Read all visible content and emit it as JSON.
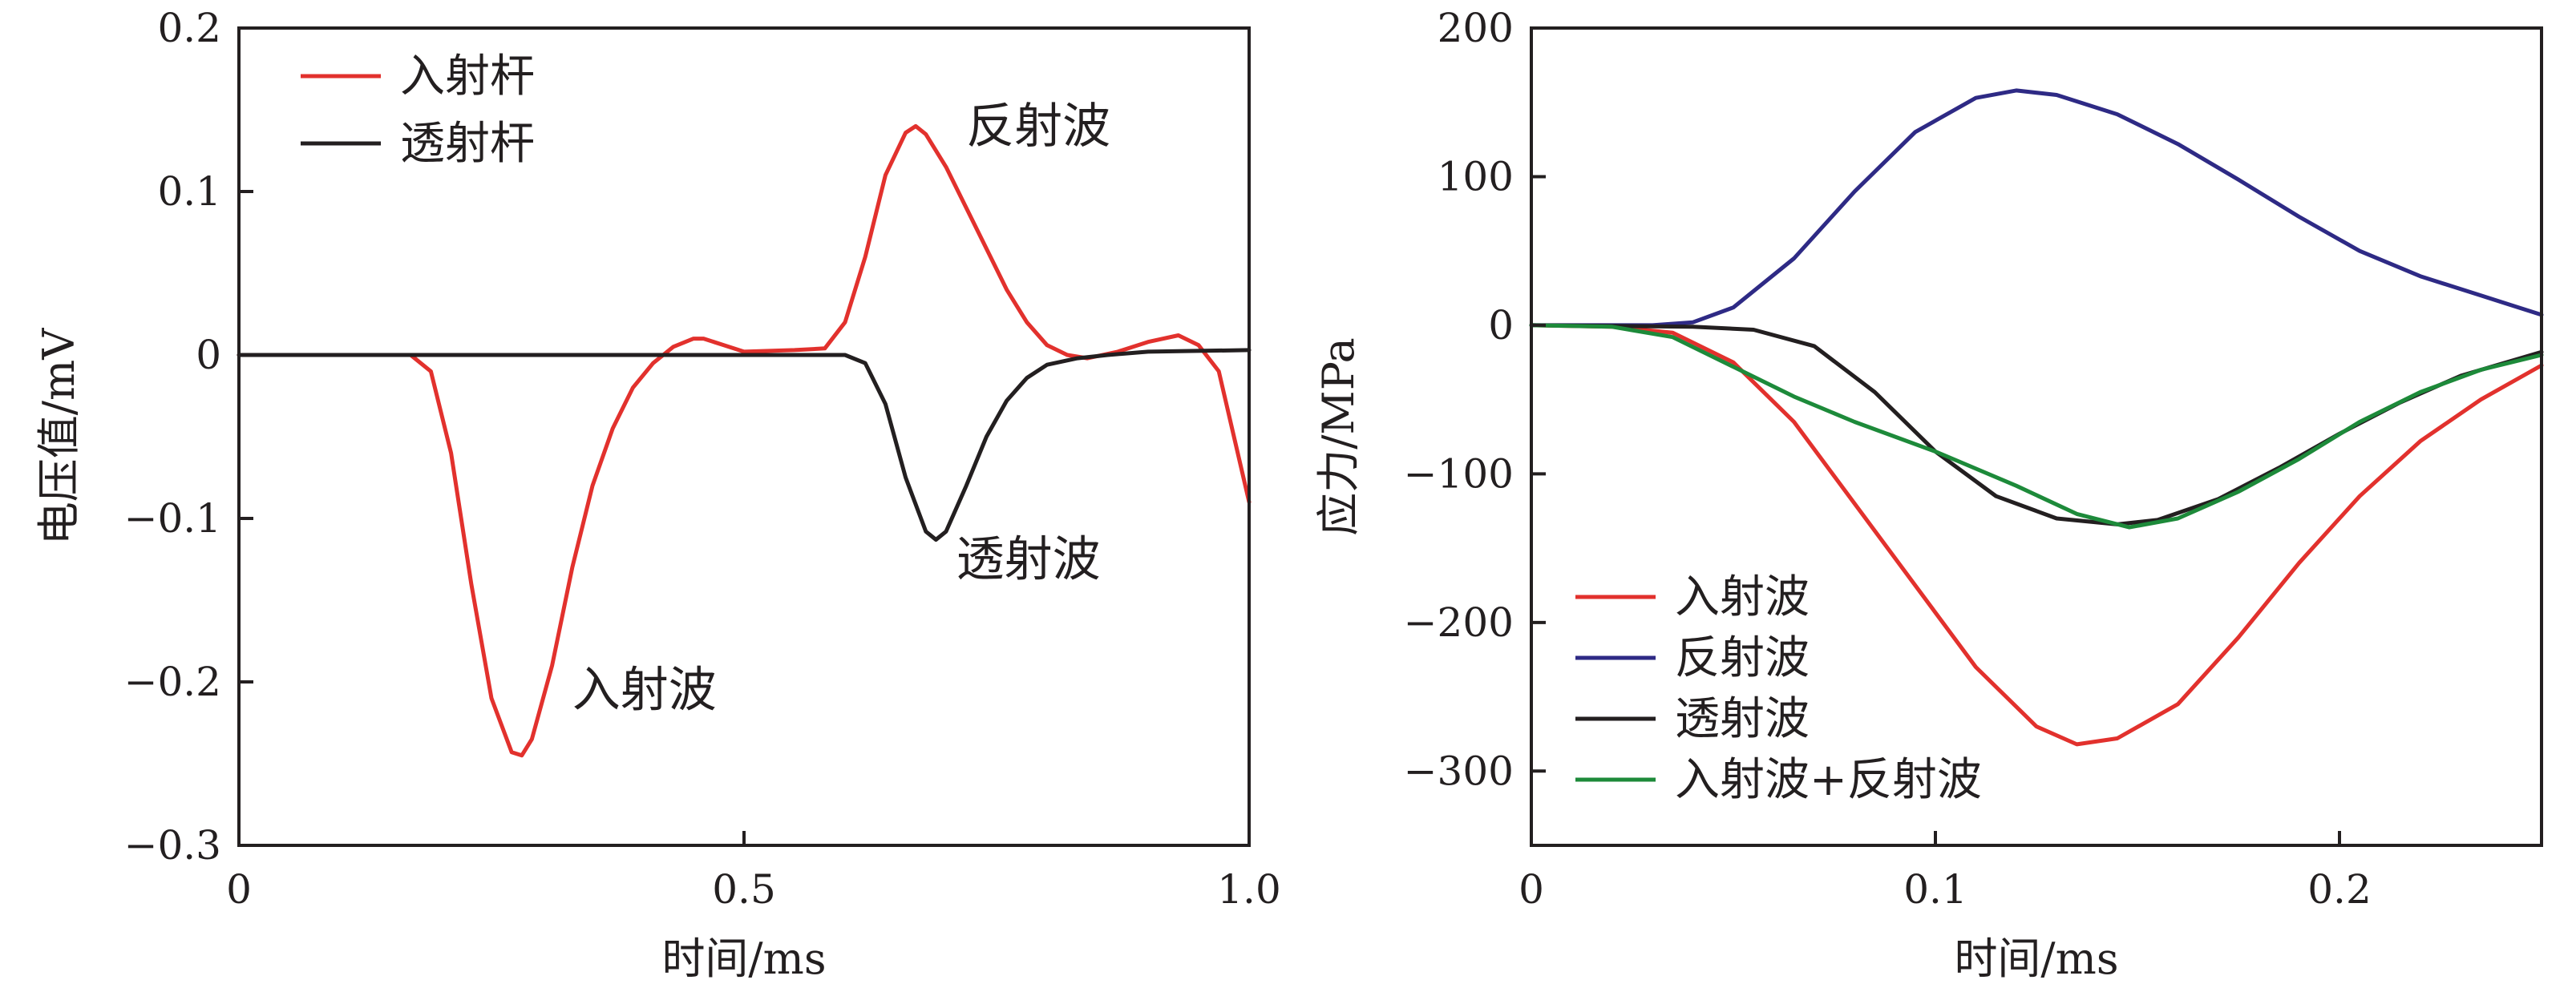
{
  "chart_data": [
    {
      "type": "line",
      "title": "",
      "xlabel": "时间/ms",
      "ylabel": "电压值/mV",
      "xlim": [
        0,
        1.0
      ],
      "ylim": [
        -0.3,
        0.2
      ],
      "xticks": [
        "0",
        "0.5",
        "1.0"
      ],
      "xtick_values": [
        0,
        0.5,
        1.0
      ],
      "yticks": [
        "0.2",
        "0.1",
        "0",
        "−0.1",
        "−0.2",
        "−0.3"
      ],
      "ytick_values": [
        0.2,
        0.1,
        0,
        -0.1,
        -0.2,
        -0.3
      ],
      "grid": false,
      "legend_position": "top-left",
      "series": [
        {
          "name": "入射杆",
          "color": "#e2312d",
          "points": [
            [
              0,
              0
            ],
            [
              0.17,
              0
            ],
            [
              0.19,
              -0.01
            ],
            [
              0.21,
              -0.06
            ],
            [
              0.23,
              -0.14
            ],
            [
              0.25,
              -0.21
            ],
            [
              0.27,
              -0.243
            ],
            [
              0.28,
              -0.245
            ],
            [
              0.29,
              -0.235
            ],
            [
              0.31,
              -0.19
            ],
            [
              0.33,
              -0.13
            ],
            [
              0.35,
              -0.08
            ],
            [
              0.37,
              -0.045
            ],
            [
              0.39,
              -0.02
            ],
            [
              0.41,
              -0.005
            ],
            [
              0.43,
              0.005
            ],
            [
              0.45,
              0.01
            ],
            [
              0.46,
              0.01
            ],
            [
              0.48,
              0.006
            ],
            [
              0.5,
              0.002
            ],
            [
              0.55,
              0.003
            ],
            [
              0.58,
              0.004
            ],
            [
              0.6,
              0.02
            ],
            [
              0.62,
              0.06
            ],
            [
              0.64,
              0.11
            ],
            [
              0.66,
              0.136
            ],
            [
              0.67,
              0.14
            ],
            [
              0.68,
              0.135
            ],
            [
              0.7,
              0.115
            ],
            [
              0.72,
              0.09
            ],
            [
              0.74,
              0.065
            ],
            [
              0.76,
              0.04
            ],
            [
              0.78,
              0.02
            ],
            [
              0.8,
              0.006
            ],
            [
              0.82,
              0.0
            ],
            [
              0.84,
              -0.002
            ],
            [
              0.87,
              0.002
            ],
            [
              0.9,
              0.008
            ],
            [
              0.93,
              0.012
            ],
            [
              0.95,
              0.006
            ],
            [
              0.97,
              -0.01
            ],
            [
              0.985,
              -0.05
            ],
            [
              1.0,
              -0.09
            ]
          ]
        },
        {
          "name": "透射杆",
          "color": "#231f20",
          "points": [
            [
              0,
              0
            ],
            [
              0.55,
              0
            ],
            [
              0.6,
              0
            ],
            [
              0.62,
              -0.005
            ],
            [
              0.64,
              -0.03
            ],
            [
              0.66,
              -0.075
            ],
            [
              0.68,
              -0.108
            ],
            [
              0.69,
              -0.113
            ],
            [
              0.7,
              -0.108
            ],
            [
              0.72,
              -0.08
            ],
            [
              0.74,
              -0.05
            ],
            [
              0.76,
              -0.028
            ],
            [
              0.78,
              -0.014
            ],
            [
              0.8,
              -0.006
            ],
            [
              0.83,
              -0.002
            ],
            [
              0.86,
              0.0
            ],
            [
              0.9,
              0.002
            ],
            [
              1.0,
              0.003
            ]
          ]
        }
      ],
      "annotations": [
        {
          "text": "反射波",
          "x": 0.72,
          "y": 0.13
        },
        {
          "text": "透射波",
          "x": 0.71,
          "y": -0.135
        },
        {
          "text": "入射波",
          "x": 0.33,
          "y": -0.215
        }
      ]
    },
    {
      "type": "line",
      "title": "",
      "xlabel": "时间/ms",
      "ylabel": "应力/MPa",
      "xlim": [
        0,
        0.25
      ],
      "ylim": [
        -350,
        200
      ],
      "xticks": [
        "0",
        "0.1",
        "0.2"
      ],
      "xtick_values": [
        0,
        0.1,
        0.2
      ],
      "yticks": [
        "200",
        "100",
        "0",
        "−100",
        "−200",
        "−300"
      ],
      "ytick_values": [
        200,
        100,
        0,
        -100,
        -200,
        -300
      ],
      "grid": false,
      "legend_position": "bottom-left",
      "series": [
        {
          "name": "入射波",
          "color": "#e2312d",
          "points": [
            [
              0,
              0
            ],
            [
              0.02,
              -1
            ],
            [
              0.035,
              -5
            ],
            [
              0.05,
              -25
            ],
            [
              0.065,
              -65
            ],
            [
              0.08,
              -120
            ],
            [
              0.095,
              -175
            ],
            [
              0.11,
              -230
            ],
            [
              0.125,
              -270
            ],
            [
              0.135,
              -282
            ],
            [
              0.145,
              -278
            ],
            [
              0.16,
              -255
            ],
            [
              0.175,
              -210
            ],
            [
              0.19,
              -160
            ],
            [
              0.205,
              -115
            ],
            [
              0.22,
              -78
            ],
            [
              0.235,
              -50
            ],
            [
              0.25,
              -27
            ]
          ]
        },
        {
          "name": "反射波",
          "color": "#2e2a85",
          "points": [
            [
              0,
              0
            ],
            [
              0.03,
              0
            ],
            [
              0.04,
              2
            ],
            [
              0.05,
              12
            ],
            [
              0.065,
              45
            ],
            [
              0.08,
              90
            ],
            [
              0.095,
              130
            ],
            [
              0.11,
              153
            ],
            [
              0.12,
              158
            ],
            [
              0.13,
              155
            ],
            [
              0.145,
              142
            ],
            [
              0.16,
              122
            ],
            [
              0.175,
              98
            ],
            [
              0.19,
              73
            ],
            [
              0.205,
              50
            ],
            [
              0.22,
              33
            ],
            [
              0.235,
              20
            ],
            [
              0.25,
              7
            ]
          ]
        },
        {
          "name": "透射波",
          "color": "#231f20",
          "points": [
            [
              0,
              0
            ],
            [
              0.04,
              -1
            ],
            [
              0.055,
              -3
            ],
            [
              0.07,
              -14
            ],
            [
              0.085,
              -45
            ],
            [
              0.1,
              -85
            ],
            [
              0.115,
              -115
            ],
            [
              0.13,
              -130
            ],
            [
              0.145,
              -134
            ],
            [
              0.155,
              -131
            ],
            [
              0.17,
              -117
            ],
            [
              0.185,
              -96
            ],
            [
              0.2,
              -73
            ],
            [
              0.215,
              -52
            ],
            [
              0.23,
              -34
            ],
            [
              0.25,
              -18
            ]
          ]
        },
        {
          "name": "入射波+反射波",
          "color": "#1d8a3a",
          "points": [
            [
              0,
              0
            ],
            [
              0.02,
              -1
            ],
            [
              0.035,
              -8
            ],
            [
              0.05,
              -28
            ],
            [
              0.065,
              -48
            ],
            [
              0.08,
              -65
            ],
            [
              0.1,
              -85
            ],
            [
              0.12,
              -108
            ],
            [
              0.135,
              -127
            ],
            [
              0.148,
              -136
            ],
            [
              0.16,
              -130
            ],
            [
              0.175,
              -112
            ],
            [
              0.19,
              -90
            ],
            [
              0.205,
              -65
            ],
            [
              0.22,
              -45
            ],
            [
              0.235,
              -30
            ],
            [
              0.25,
              -20
            ]
          ]
        }
      ],
      "annotations": []
    }
  ]
}
